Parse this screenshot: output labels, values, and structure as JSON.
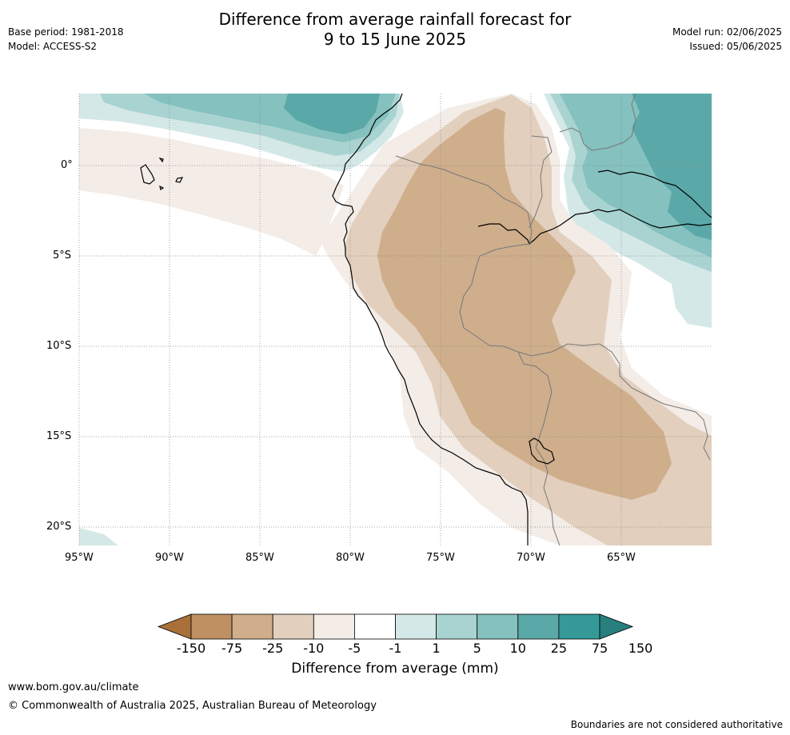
{
  "header": {
    "title_line1": "Difference from average rainfall forecast for",
    "title_line2": "9 to 15 June 2025",
    "base_period": "Base period: 1981-2018",
    "model": "Model: ACCESS-S2",
    "model_run": "Model run: 02/06/2025",
    "issued": "Issued: 05/06/2025"
  },
  "map": {
    "lon_labels": [
      "95°W",
      "90°W",
      "85°W",
      "80°W",
      "75°W",
      "70°W",
      "65°W"
    ],
    "lat_labels": [
      "0°",
      "5°S",
      "10°S",
      "15°S",
      "20°S"
    ]
  },
  "legend": {
    "title": "Difference from average (mm)",
    "ticks": [
      "-150",
      "-75",
      "-25",
      "-10",
      "-5",
      "-1",
      "1",
      "5",
      "10",
      "25",
      "75",
      "150"
    ],
    "colors": [
      "#a9703a",
      "#bf9062",
      "#cfae8c",
      "#e2cfbd",
      "#f3ece7",
      "#ffffff",
      "#d4e8e7",
      "#a9d3d1",
      "#84c1bf",
      "#5aa9a8",
      "#359a97",
      "#287f7e"
    ]
  },
  "footer": {
    "link": "www.bom.gov.au/climate",
    "copyright": "© Commonwealth of Australia 2025, Australian Bureau of Meteorology",
    "note": "Boundaries are not considered authoritative"
  }
}
